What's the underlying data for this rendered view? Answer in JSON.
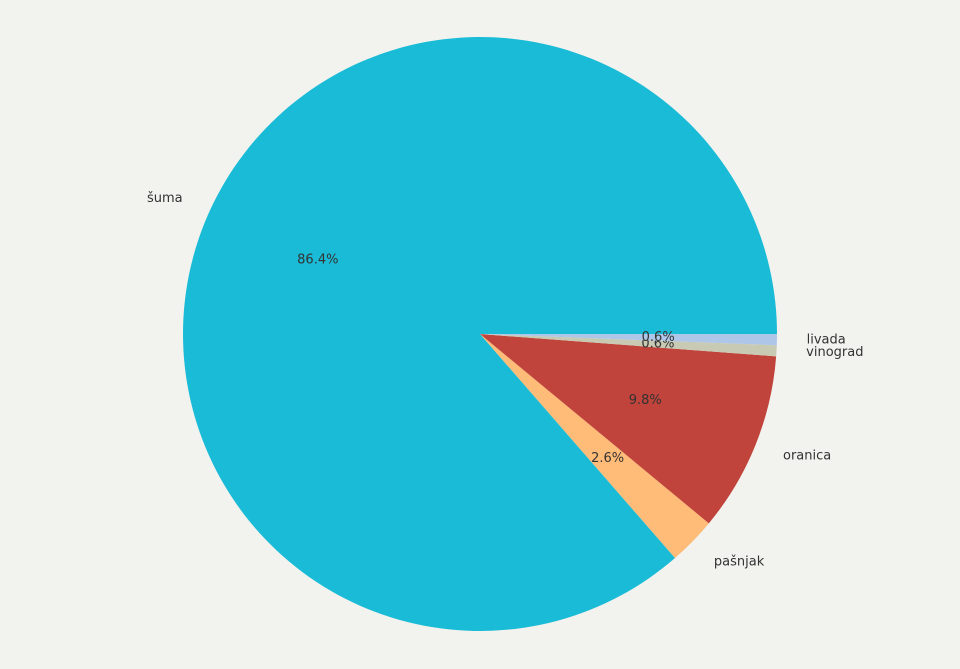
{
  "chart_data": {
    "type": "pie",
    "categories": [
      "šuma",
      "pašnjak",
      "oranica",
      "vinograd",
      "livada"
    ],
    "values": [
      86.4,
      2.6,
      9.8,
      0.6,
      0.6
    ],
    "value_labels": [
      "86.4%",
      "2.6%",
      "9.8%",
      "0.6%",
      "0.6%"
    ],
    "colors": [
      "#1abbd6",
      "#ffbb78",
      "#c0443b",
      "#c8cab4",
      "#aec7e8"
    ]
  }
}
